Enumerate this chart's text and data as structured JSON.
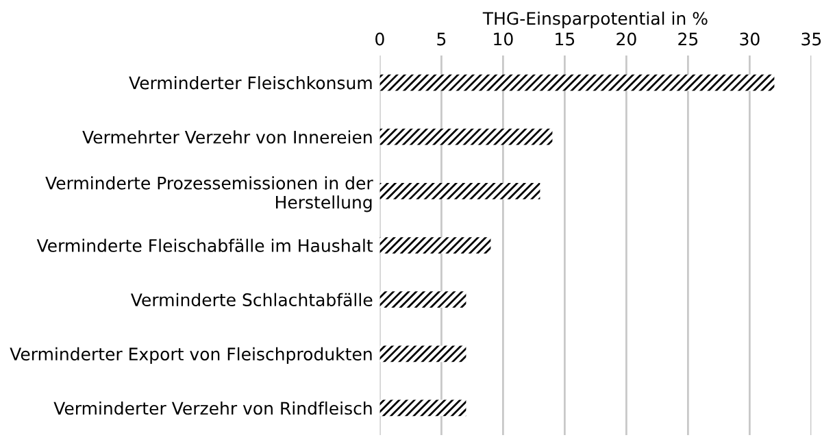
{
  "chart_data": {
    "type": "bar",
    "orientation": "horizontal",
    "xlabel": "THG-Einsparpotential in %",
    "categories": [
      "Verminderter Fleischkonsum",
      "Vermehrter Verzehr von Innereien",
      "Verminderte Prozessemissionen in der\nHerstellung",
      "Verminderte Fleischabfälle im Haushalt",
      "Verminderte Schlachtabfälle",
      "Verminderter Export von Fleischprodukten",
      "Verminderter Verzehr von Rindfleisch"
    ],
    "values": [
      32,
      14,
      13,
      9,
      7,
      7,
      7
    ],
    "color": "#000000",
    "xlim": [
      0,
      35
    ],
    "xticks": [
      0,
      5,
      10,
      15,
      20,
      25,
      30,
      35
    ],
    "grid": "x"
  }
}
